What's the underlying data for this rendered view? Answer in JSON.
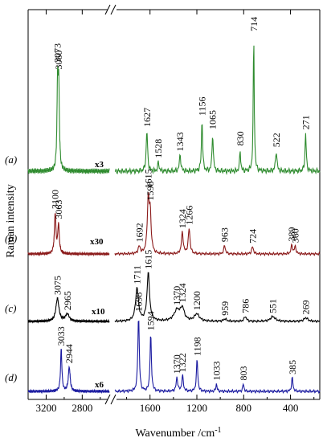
{
  "chart_data": {
    "type": "line",
    "title": "",
    "xlabel": "Wavenumber /cm",
    "xlabel_superscript": "-1",
    "ylabel": "Raman intensity",
    "x_reversed": true,
    "x_axis_broken": true,
    "x_segments": [
      {
        "range": [
          3400,
          2500
        ],
        "ticks": [
          3200,
          2800
        ]
      },
      {
        "range": [
          1900,
          150
        ],
        "ticks": [
          1600,
          1200,
          800,
          400
        ]
      }
    ],
    "y_ticks_shown": false,
    "series": [
      {
        "label": "(a)",
        "color": "#2e8b2e",
        "multiplier": "x3",
        "peaks": [
          {
            "x": 3073,
            "h": 0.62,
            "w": 8
          },
          {
            "x": 3060,
            "h": 0.55,
            "w": 8
          },
          {
            "x": 1627,
            "h": 0.3,
            "w": 7
          },
          {
            "x": 1528,
            "h": 0.07,
            "w": 6
          },
          {
            "x": 1343,
            "h": 0.12,
            "w": 7
          },
          {
            "x": 1156,
            "h": 0.38,
            "w": 6
          },
          {
            "x": 1065,
            "h": 0.28,
            "w": 6
          },
          {
            "x": 830,
            "h": 0.16,
            "w": 5
          },
          {
            "x": 714,
            "h": 1.0,
            "w": 5
          },
          {
            "x": 522,
            "h": 0.15,
            "w": 7
          },
          {
            "x": 271,
            "h": 0.28,
            "w": 6
          }
        ],
        "peak_labels": [
          "3073",
          "3060",
          "1627",
          "1528",
          "1343",
          "1156",
          "1065",
          "830",
          "714",
          "522",
          "271"
        ]
      },
      {
        "label": "(b)",
        "color": "#8b1a1a",
        "multiplier": "x30",
        "peaks": [
          {
            "x": 3100,
            "h": 0.55,
            "w": 10
          },
          {
            "x": 3063,
            "h": 0.4,
            "w": 10
          },
          {
            "x": 1692,
            "h": 0.1,
            "w": 10
          },
          {
            "x": 1615,
            "h": 0.75,
            "w": 10
          },
          {
            "x": 1598,
            "h": 0.5,
            "w": 9
          },
          {
            "x": 1324,
            "h": 0.3,
            "w": 9
          },
          {
            "x": 1266,
            "h": 0.35,
            "w": 9
          },
          {
            "x": 963,
            "h": 0.12,
            "w": 8
          },
          {
            "x": 724,
            "h": 0.1,
            "w": 9
          },
          {
            "x": 389,
            "h": 0.12,
            "w": 8
          },
          {
            "x": 360,
            "h": 0.1,
            "w": 8
          }
        ],
        "peak_labels": [
          "3100",
          "3063",
          "1692",
          "1615",
          "1598",
          "1324",
          "1266",
          "963",
          "724",
          "389",
          "360"
        ]
      },
      {
        "label": "(c)",
        "color": "#000000",
        "multiplier": "x10",
        "peaks": [
          {
            "x": 3075,
            "h": 0.38,
            "w": 20
          },
          {
            "x": 2965,
            "h": 0.12,
            "w": 25
          },
          {
            "x": 1711,
            "h": 0.55,
            "w": 15
          },
          {
            "x": 1615,
            "h": 0.8,
            "w": 13
          },
          {
            "x": 1370,
            "h": 0.18,
            "w": 30
          },
          {
            "x": 1324,
            "h": 0.2,
            "w": 20
          },
          {
            "x": 1200,
            "h": 0.12,
            "w": 25
          },
          {
            "x": 959,
            "h": 0.04,
            "w": 15
          },
          {
            "x": 786,
            "h": 0.08,
            "w": 12
          },
          {
            "x": 551,
            "h": 0.08,
            "w": 25
          },
          {
            "x": 269,
            "h": 0.06,
            "w": 20
          }
        ],
        "peak_labels": [
          "3075",
          "2965",
          "1711",
          "1615",
          "1370",
          "1324",
          "1200",
          "959",
          "786",
          "551",
          "269"
        ]
      },
      {
        "label": "(d)",
        "color": "#1a1aa0",
        "multiplier": "x6",
        "peaks": [
          {
            "x": 3033,
            "h": 0.55,
            "w": 9
          },
          {
            "x": 2944,
            "h": 0.32,
            "w": 12
          },
          {
            "x": 1698,
            "h": 1.0,
            "w": 7
          },
          {
            "x": 1594,
            "h": 0.75,
            "w": 7
          },
          {
            "x": 1370,
            "h": 0.18,
            "w": 8
          },
          {
            "x": 1322,
            "h": 0.2,
            "w": 8
          },
          {
            "x": 1198,
            "h": 0.42,
            "w": 7
          },
          {
            "x": 1033,
            "h": 0.1,
            "w": 6
          },
          {
            "x": 803,
            "h": 0.1,
            "w": 6
          },
          {
            "x": 385,
            "h": 0.18,
            "w": 7
          }
        ],
        "peak_labels": [
          "3033",
          "2944",
          "1698",
          "1594",
          "1370",
          "1322",
          "1198",
          "1033",
          "803",
          "385"
        ]
      }
    ]
  }
}
